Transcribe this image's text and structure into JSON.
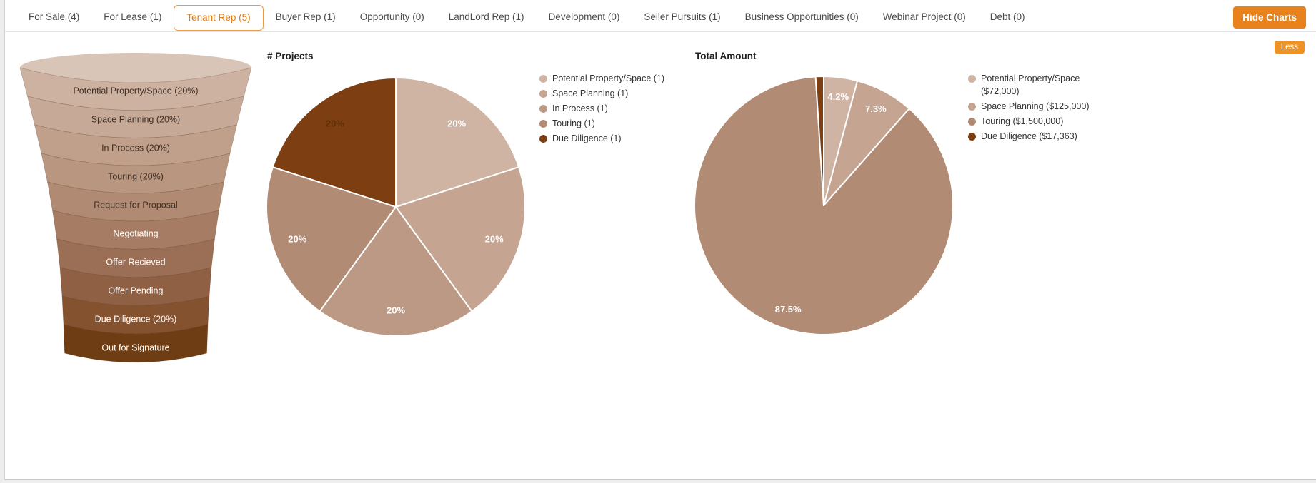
{
  "page": {
    "accent_color": "#e8821d",
    "tabs": [
      {
        "label": "For Sale (4)",
        "active": false
      },
      {
        "label": "For Lease (1)",
        "active": false
      },
      {
        "label": "Tenant Rep (5)",
        "active": true
      },
      {
        "label": "Buyer Rep (1)",
        "active": false
      },
      {
        "label": "Opportunity (0)",
        "active": false
      },
      {
        "label": "LandLord Rep (1)",
        "active": false
      },
      {
        "label": "Development (0)",
        "active": false
      },
      {
        "label": "Seller Pursuits (1)",
        "active": false
      },
      {
        "label": "Business Opportunities (0)",
        "active": false
      },
      {
        "label": "Webinar Project (0)",
        "active": false
      },
      {
        "label": "Debt (0)",
        "active": false
      }
    ],
    "buttons": {
      "hide_charts": "Hide Charts",
      "less": "Less"
    }
  },
  "chart_data": [
    {
      "type": "funnel",
      "title": "",
      "stages": [
        {
          "label": "Potential Property/Space (20%)",
          "percent": 20,
          "color": "#cdb2a2",
          "text_color": "#3e2e23"
        },
        {
          "label": "Space Planning (20%)",
          "percent": 20,
          "color": "#c7a997",
          "text_color": "#3e2e23"
        },
        {
          "label": "In Process (20%)",
          "percent": 20,
          "color": "#c0a08b",
          "text_color": "#3e2e23"
        },
        {
          "label": "Touring (20%)",
          "percent": 20,
          "color": "#b8967f",
          "text_color": "#3e2e23"
        },
        {
          "label": "Request for Proposal",
          "percent": 0,
          "color": "#b08a72",
          "text_color": "#3e2e23"
        },
        {
          "label": "Negotiating",
          "percent": 0,
          "color": "#a67d64",
          "text_color": "#ffffff"
        },
        {
          "label": "Offer Recieved",
          "percent": 0,
          "color": "#9b6f55",
          "text_color": "#ffffff"
        },
        {
          "label": "Offer Pending",
          "percent": 0,
          "color": "#906044",
          "text_color": "#ffffff"
        },
        {
          "label": "Due Diligence (20%)",
          "percent": 20,
          "color": "#855230",
          "text_color": "#ffffff"
        },
        {
          "label": "Out for Signature",
          "percent": 0,
          "color": "#6f3d13",
          "text_color": "#ffffff"
        }
      ]
    },
    {
      "type": "pie",
      "title": "# Projects",
      "legend_position": "right",
      "slices": [
        {
          "label": "Potential Property/Space (1)",
          "value": 1,
          "percent": 20,
          "percent_label": "20%",
          "color": "#cfb4a4",
          "label_color": "#ffffff"
        },
        {
          "label": "Space Planning (1)",
          "value": 1,
          "percent": 20,
          "percent_label": "20%",
          "color": "#c5a592",
          "label_color": "#ffffff"
        },
        {
          "label": "In Process (1)",
          "value": 1,
          "percent": 20,
          "percent_label": "20%",
          "color": "#bc9984",
          "label_color": "#ffffff"
        },
        {
          "label": "Touring (1)",
          "value": 1,
          "percent": 20,
          "percent_label": "20%",
          "color": "#b18b74",
          "label_color": "#ffffff"
        },
        {
          "label": "Due Diligence (1)",
          "value": 1,
          "percent": 20,
          "percent_label": "20%",
          "color": "#7d3e11",
          "label_color": "#5f2d08"
        }
      ]
    },
    {
      "type": "pie",
      "title": "Total Amount",
      "legend_position": "right",
      "slices": [
        {
          "label": "Potential Property/Space ($72,000)",
          "value": 72000,
          "percent": 4.2,
          "percent_label": "4.2%",
          "color": "#cfb4a4",
          "label_color": "#ffffff"
        },
        {
          "label": "Space Planning ($125,000)",
          "value": 125000,
          "percent": 7.3,
          "percent_label": "7.3%",
          "color": "#c5a592",
          "label_color": "#ffffff"
        },
        {
          "label": "Touring ($1,500,000)",
          "value": 1500000,
          "percent": 87.5,
          "percent_label": "87.5%",
          "color": "#b18b74",
          "label_color": "#ffffff"
        },
        {
          "label": "Due Diligence ($17,363)",
          "value": 17363,
          "percent": 1.0,
          "percent_label": "",
          "color": "#7d3e11",
          "label_color": "#ffffff"
        }
      ]
    }
  ]
}
